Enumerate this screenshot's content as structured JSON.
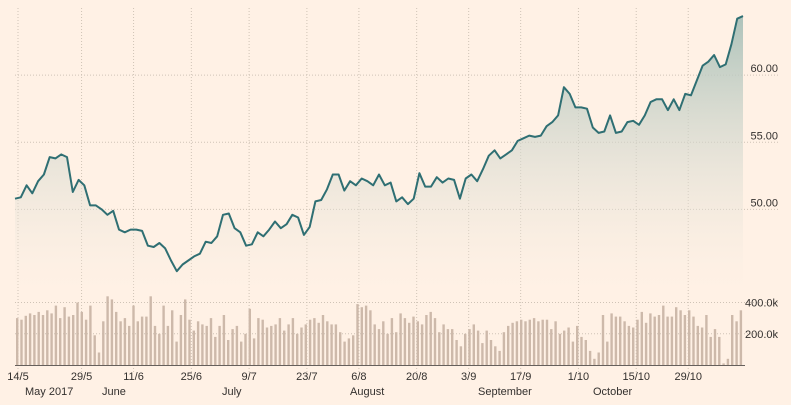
{
  "chart_data": [
    {
      "type": "area",
      "title": "",
      "xlabel": "",
      "ylabel": "",
      "y_ticks": [
        "50.00",
        "55.00",
        "60.00"
      ],
      "y_tick_values": [
        50,
        55,
        60
      ],
      "ylim": [
        44,
        65
      ],
      "grid": true,
      "colors": {
        "line": "#2f6f73",
        "fill_top": "#a9c0b8",
        "fill_bottom": "#fff1e5",
        "grid": "#cfc3b6"
      },
      "series": [
        {
          "values": [
            50.8,
            50.9,
            51.8,
            51.2,
            52.1,
            52.6,
            53.9,
            53.8,
            54.1,
            53.9,
            51.3,
            52.2,
            51.8,
            50.3,
            50.3,
            50.0,
            49.6,
            49.9,
            48.5,
            48.3,
            48.5,
            48.5,
            48.4,
            47.3,
            47.2,
            47.5,
            47.1,
            46.2,
            45.4,
            45.9,
            46.2,
            46.5,
            46.7,
            47.6,
            47.5,
            48.0,
            49.6,
            49.7,
            48.6,
            48.3,
            47.3,
            47.4,
            48.3,
            48.0,
            48.5,
            49.1,
            48.6,
            48.9,
            49.6,
            49.4,
            48.1,
            48.7,
            50.6,
            50.7,
            51.5,
            52.6,
            52.6,
            51.4,
            52.1,
            51.8,
            52.3,
            52.1,
            51.8,
            52.6,
            51.8,
            52.0,
            50.6,
            50.9,
            50.4,
            50.8,
            52.7,
            51.7,
            51.7,
            52.4,
            52.0,
            52.3,
            52.2,
            50.8,
            52.3,
            52.6,
            52.1,
            53.0,
            54.0,
            54.4,
            53.8,
            54.1,
            54.4,
            55.1,
            55.3,
            55.5,
            55.4,
            55.5,
            56.2,
            56.5,
            57.0,
            59.1,
            58.6,
            57.6,
            57.6,
            57.5,
            56.1,
            55.7,
            55.8,
            57.0,
            55.7,
            55.8,
            56.5,
            56.6,
            56.3,
            57.0,
            58.0,
            58.2,
            58.2,
            57.4,
            58.2,
            57.4,
            58.6,
            58.5,
            59.6,
            60.7,
            61.0,
            61.5,
            60.6,
            60.8,
            62.3,
            64.2,
            64.4
          ]
        }
      ],
      "x_tick_labels": [
        "14/5",
        "29/5",
        "11/6",
        "25/6",
        "9/7",
        "23/7",
        "6/8",
        "20/8",
        "3/9",
        "17/9",
        "1/10",
        "15/10",
        "29/10"
      ],
      "month_labels": [
        "May 2017",
        "June",
        "July",
        "August",
        "September",
        "October"
      ]
    },
    {
      "type": "bar",
      "title": "",
      "y_ticks": [
        "200.0k",
        "400.0k"
      ],
      "y_tick_values": [
        200000,
        400000
      ],
      "ylim": [
        0,
        480000
      ],
      "color": "#cdb9aa",
      "series": [
        {
          "values": [
            300000,
            290000,
            315000,
            330000,
            320000,
            340000,
            320000,
            350000,
            330000,
            380000,
            300000,
            370000,
            310000,
            320000,
            400000,
            340000,
            290000,
            380000,
            190000,
            80000,
            280000,
            440000,
            420000,
            340000,
            280000,
            300000,
            250000,
            380000,
            280000,
            310000,
            310000,
            440000,
            250000,
            200000,
            380000,
            250000,
            350000,
            150000,
            320000,
            420000,
            290000,
            220000,
            280000,
            260000,
            250000,
            300000,
            180000,
            250000,
            320000,
            160000,
            230000,
            250000,
            150000,
            200000,
            360000,
            170000,
            300000,
            290000,
            240000,
            250000,
            260000,
            300000,
            220000,
            260000,
            300000,
            200000,
            240000,
            260000,
            290000,
            300000,
            270000,
            320000,
            280000,
            260000,
            260000,
            210000,
            150000,
            170000,
            190000,
            390000,
            370000,
            380000,
            350000,
            260000,
            230000,
            280000,
            200000,
            300000,
            210000,
            330000,
            300000,
            270000,
            310000,
            280000,
            260000,
            320000,
            340000,
            300000,
            210000,
            260000,
            230000,
            230000,
            160000,
            120000,
            200000,
            230000,
            260000,
            220000,
            140000,
            220000,
            160000,
            120000,
            90000,
            210000,
            250000,
            270000,
            280000,
            290000,
            280000,
            290000,
            300000,
            280000,
            290000,
            290000,
            230000,
            280000,
            200000,
            220000,
            240000,
            150000,
            250000,
            180000,
            160000,
            90000,
            40000,
            80000,
            320000,
            150000,
            330000,
            310000,
            310000,
            280000,
            250000,
            240000,
            290000,
            340000,
            270000,
            330000,
            310000,
            320000,
            380000,
            310000,
            310000,
            370000,
            350000,
            320000,
            350000,
            310000,
            250000,
            240000,
            320000,
            180000,
            230000,
            180000,
            10000,
            40000,
            320000,
            280000,
            350000
          ]
        }
      ]
    }
  ]
}
